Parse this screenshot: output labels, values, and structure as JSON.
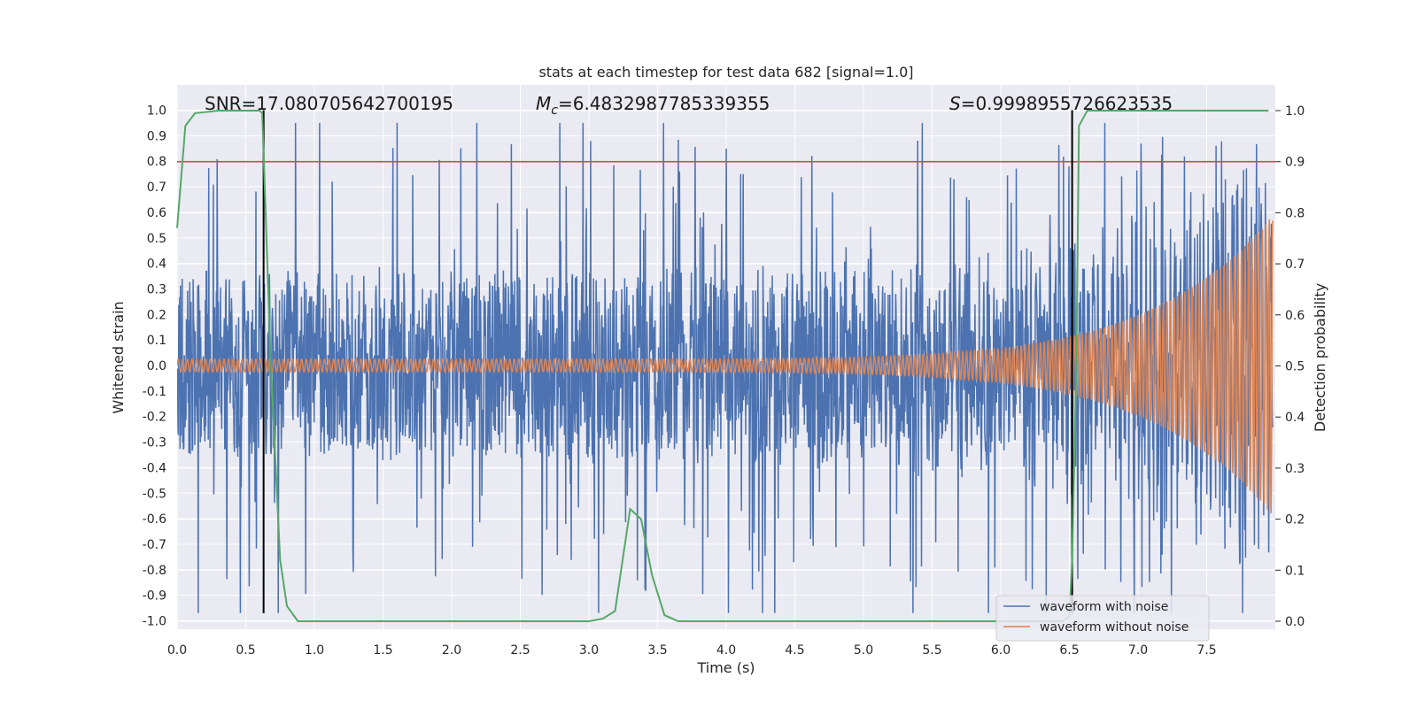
{
  "chart_data": {
    "type": "line",
    "title": "stats at each timestep for test data 682 [signal=1.0]",
    "xlabel": "Time (s)",
    "ylabel": "Whitened strain",
    "y2label": "Detection probability",
    "xlim": [
      0.0,
      8.0
    ],
    "ylim": [
      -1.05,
      1.05
    ],
    "y2lim": [
      -0.05,
      1.05
    ],
    "x_ticks": [
      0.0,
      0.5,
      1.0,
      1.5,
      2.0,
      2.5,
      3.0,
      3.5,
      4.0,
      4.5,
      5.0,
      5.5,
      6.0,
      6.5,
      7.0,
      7.5
    ],
    "x_tick_labels": [
      "0.0",
      "0.5",
      "1.0",
      "1.5",
      "2.0",
      "2.5",
      "3.0",
      "3.5",
      "4.0",
      "4.5",
      "5.0",
      "5.5",
      "6.0",
      "6.5",
      "7.0",
      "7.5"
    ],
    "y_ticks": [
      1.0,
      0.9,
      0.8,
      0.7,
      0.6,
      0.5,
      0.4,
      0.3,
      0.2,
      0.1,
      0.0,
      -0.1,
      -0.2,
      -0.3,
      -0.4,
      -0.5,
      -0.6,
      -0.7,
      -0.8,
      -0.9,
      -1.0
    ],
    "y_tick_labels": [
      "1.0",
      "0.9",
      "0.8",
      "0.7",
      "0.6",
      "0.5",
      "0.4",
      "0.3",
      "0.2",
      "0.1",
      "0.0",
      "-0.1",
      "-0.2",
      "-0.3",
      "-0.4",
      "-0.5",
      "-0.6",
      "-0.7",
      "-0.8",
      "-0.9",
      "-1.0"
    ],
    "y2_ticks": [
      1.0,
      0.9,
      0.8,
      0.7,
      0.6,
      0.5,
      0.4,
      0.3,
      0.2,
      0.1,
      0.0
    ],
    "y2_tick_labels": [
      "1.0",
      "0.9",
      "0.8",
      "0.7",
      "0.6",
      "0.5",
      "0.4",
      "0.3",
      "0.2",
      "0.1",
      "0.0"
    ],
    "grid": true,
    "legend_position": "bottom-right",
    "annotations": {
      "snr_text": "SNR=17.080705642700195",
      "mc_symbol": "M",
      "mc_subscript": "c",
      "mc_value": "=6.4832987785339355",
      "s_symbol": "S",
      "s_value": "=0.9998955726623535"
    },
    "series": [
      {
        "name": "waveform with noise",
        "color": "#4c72b0",
        "axis": "left",
        "description_type": "noise",
        "band_low_y": -0.37,
        "band_high_y": 0.36,
        "peak_y_max": 1.0,
        "peak_y_min": -0.97
      },
      {
        "name": "waveform without noise",
        "color": "#dd8452",
        "axis": "left",
        "description_type": "chirp",
        "start_amplitude": 0.025,
        "end_amplitude": 0.6
      },
      {
        "name": "detection probability",
        "color": "#55a868",
        "axis": "right",
        "x": [
          0.0,
          0.06,
          0.13,
          0.3,
          0.45,
          0.6,
          0.62,
          0.68,
          0.75,
          0.8,
          0.88,
          1.0,
          2.0,
          3.0,
          3.1,
          3.19,
          3.3,
          3.38,
          3.46,
          3.55,
          3.65,
          4.0,
          5.0,
          6.0,
          6.45,
          6.5,
          6.52,
          6.55,
          6.57,
          6.63,
          6.7,
          7.0,
          7.5,
          7.95
        ],
        "values": [
          0.77,
          0.97,
          0.995,
          1.0,
          1.0,
          1.0,
          0.995,
          0.52,
          0.12,
          0.03,
          0.0,
          0.0,
          0.0,
          0.0,
          0.005,
          0.02,
          0.22,
          0.2,
          0.09,
          0.012,
          0.0,
          0.0,
          0.0,
          0.0,
          0.0,
          0.01,
          0.12,
          0.5,
          0.97,
          1.0,
          1.0,
          1.0,
          1.0,
          1.0
        ]
      }
    ],
    "reference_lines": [
      {
        "name": "threshold",
        "orientation": "horizontal",
        "axis": "right",
        "value": 0.9,
        "color": "#c44e52"
      },
      {
        "name": "marker-1",
        "orientation": "vertical",
        "value": 0.63,
        "y_from": -0.97,
        "y_to": 1.0,
        "color": "#000000"
      },
      {
        "name": "marker-2",
        "orientation": "vertical",
        "value": 6.52,
        "y_from": -0.97,
        "y_to": 1.0,
        "color": "#000000"
      }
    ]
  }
}
